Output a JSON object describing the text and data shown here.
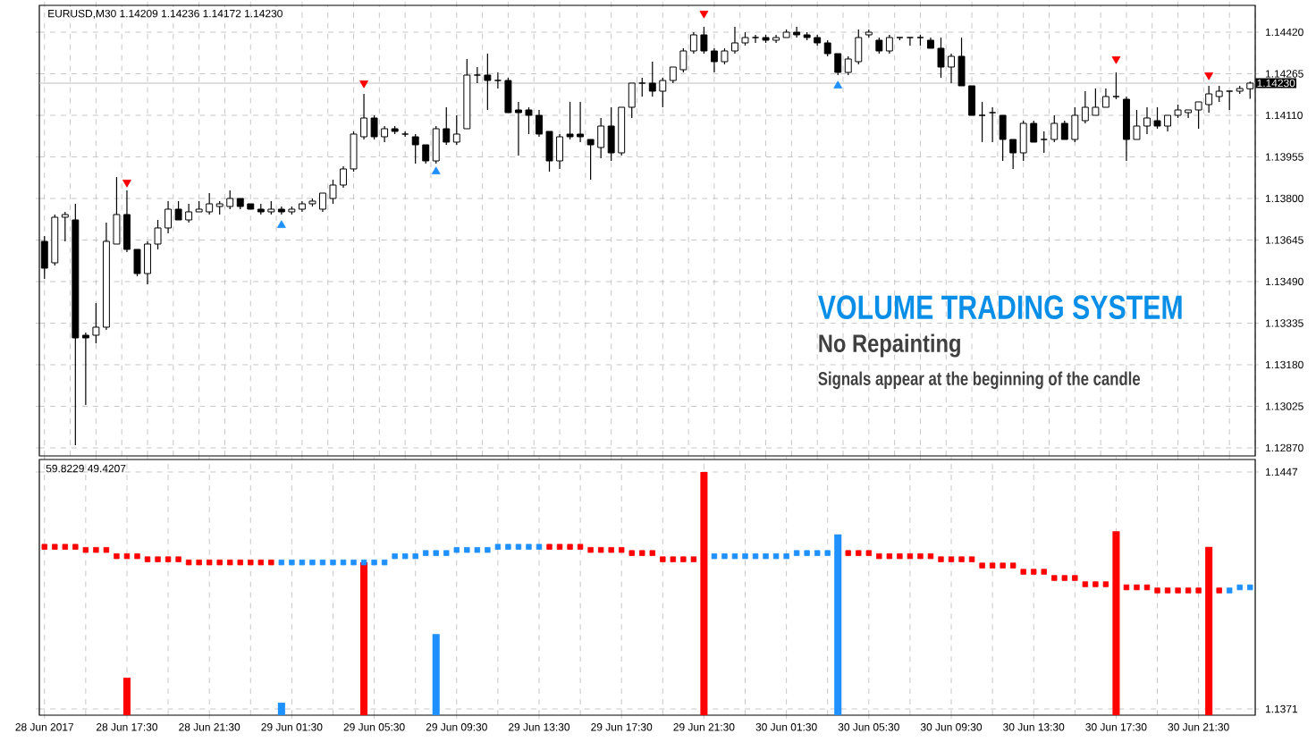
{
  "chart_data": [
    {
      "type": "candlestick",
      "title": "EURUSD,M30  1.14209 1.14236 1.14172 1.14230",
      "color": "#000000",
      "grid": true,
      "tick_labels": "y",
      "categories": [
        null,
        null,
        null,
        null,
        null,
        null,
        null,
        null,
        null,
        null,
        null,
        null,
        null,
        null,
        null,
        null,
        null,
        null,
        null,
        null,
        null,
        null,
        null,
        null,
        null,
        null,
        null,
        null,
        null,
        null,
        null,
        null,
        null,
        null,
        null,
        null,
        null,
        null,
        null,
        null,
        null,
        null,
        null,
        null,
        null,
        null,
        null,
        null,
        null,
        null,
        null,
        null,
        null,
        null,
        null,
        null,
        null,
        null,
        null,
        null,
        null,
        null,
        null,
        null,
        null,
        null,
        null,
        null,
        null,
        null,
        null,
        null,
        null,
        null,
        null,
        null,
        null,
        null,
        null,
        null,
        null,
        null,
        null,
        null,
        null,
        null,
        null,
        null,
        null,
        null,
        null,
        null,
        null,
        null,
        null,
        null,
        null,
        null,
        null,
        null,
        null,
        null,
        null,
        null,
        null,
        null,
        null,
        null,
        null,
        null,
        null,
        null,
        null,
        null,
        null,
        null,
        null,
        null
      ],
      "ylim": [
        1.1284,
        1.1452
      ],
      "yticks": [
        {
          "value": 1.1442,
          "label": "1.14420"
        },
        {
          "value": 1.14265,
          "label": "1.14265"
        },
        {
          "value": 1.1411,
          "label": "1.14110"
        },
        {
          "value": 1.13955,
          "label": "1.13955"
        },
        {
          "value": 1.138,
          "label": "1.13800"
        },
        {
          "value": 1.13645,
          "label": "1.13645"
        },
        {
          "value": 1.1349,
          "label": "1.13490"
        },
        {
          "value": 1.13335,
          "label": "1.13335"
        },
        {
          "value": 1.1318,
          "label": "1.13180"
        },
        {
          "value": 1.13025,
          "label": "1.13025"
        },
        {
          "value": 1.1287,
          "label": "1.12870"
        }
      ],
      "ref_lines": [
        {
          "axis": "y",
          "value": 1.1423,
          "label": "1.14230",
          "color": "#c0c0c0"
        }
      ],
      "annotations": [
        "VOLUME TRADING SYSTEM",
        "No Repainting",
        "Signals appear at the beginning of the candle"
      ],
      "ohlc": [
        [
          1.1364,
          1.1366,
          1.135,
          1.1354
        ],
        [
          1.1356,
          1.1374,
          1.1355,
          1.1373
        ],
        [
          1.1373,
          1.1375,
          1.1364,
          1.1374
        ],
        [
          1.1372,
          1.1378,
          1.1288,
          1.1328
        ],
        [
          1.1329,
          1.133,
          1.1303,
          1.1328
        ],
        [
          1.1329,
          1.1341,
          1.1326,
          1.1332
        ],
        [
          1.1332,
          1.1371,
          1.1331,
          1.1364
        ],
        [
          1.1363,
          1.1388,
          1.1363,
          1.1374
        ],
        [
          1.1374,
          1.1383,
          1.136,
          1.1361
        ],
        [
          1.1361,
          1.1361,
          1.1351,
          1.1352
        ],
        [
          1.1352,
          1.1364,
          1.1348,
          1.1363
        ],
        [
          1.1363,
          1.1372,
          1.1361,
          1.1369
        ],
        [
          1.1369,
          1.1379,
          1.1367,
          1.1376
        ],
        [
          1.1376,
          1.1379,
          1.1372,
          1.1372
        ],
        [
          1.1372,
          1.1378,
          1.1371,
          1.1375
        ],
        [
          1.1375,
          1.1379,
          1.1375,
          1.1376
        ],
        [
          1.1375,
          1.1382,
          1.1374,
          1.1378
        ],
        [
          1.1377,
          1.1379,
          1.1374,
          1.1378
        ],
        [
          1.1377,
          1.1383,
          1.1376,
          1.138
        ],
        [
          1.138,
          1.138,
          1.1376,
          1.1377
        ],
        [
          1.1378,
          1.1378,
          1.1376,
          1.1376
        ],
        [
          1.1376,
          1.1378,
          1.1374,
          1.1375
        ],
        [
          1.1375,
          1.1379,
          1.1374,
          1.1376
        ],
        [
          1.1376,
          1.1377,
          1.1374,
          1.1375
        ],
        [
          1.1375,
          1.1377,
          1.1374,
          1.1376
        ],
        [
          1.1376,
          1.1379,
          1.1375,
          1.1378
        ],
        [
          1.1378,
          1.138,
          1.1377,
          1.1379
        ],
        [
          1.1376,
          1.1382,
          1.1375,
          1.1382
        ],
        [
          1.138,
          1.1387,
          1.1378,
          1.1385
        ],
        [
          1.1385,
          1.1392,
          1.1384,
          1.1391
        ],
        [
          1.1391,
          1.1405,
          1.139,
          1.1404
        ],
        [
          1.1403,
          1.1419,
          1.1402,
          1.141
        ],
        [
          1.141,
          1.1411,
          1.1402,
          1.1403
        ],
        [
          1.1403,
          1.1407,
          1.1401,
          1.1406
        ],
        [
          1.1406,
          1.1407,
          1.1404,
          1.1405
        ],
        [
          1.1404,
          1.1405,
          1.1403,
          1.1404
        ],
        [
          1.1403,
          1.1404,
          1.1393,
          1.14
        ],
        [
          1.14,
          1.14,
          1.1393,
          1.1394
        ],
        [
          1.1394,
          1.1407,
          1.1393,
          1.1406
        ],
        [
          1.1406,
          1.1414,
          1.14,
          1.1401
        ],
        [
          1.1401,
          1.1411,
          1.14,
          1.1404
        ],
        [
          1.1406,
          1.1432,
          1.1406,
          1.1426
        ],
        [
          1.1426,
          1.1429,
          1.1423,
          1.1426
        ],
        [
          1.1426,
          1.1434,
          1.1413,
          1.1424
        ],
        [
          1.1424,
          1.1427,
          1.1421,
          1.1424
        ],
        [
          1.1424,
          1.1425,
          1.1412,
          1.1412
        ],
        [
          1.1413,
          1.1416,
          1.1396,
          1.1412
        ],
        [
          1.1413,
          1.1414,
          1.1404,
          1.1411
        ],
        [
          1.1411,
          1.1413,
          1.1403,
          1.1404
        ],
        [
          1.1405,
          1.1405,
          1.139,
          1.1394
        ],
        [
          1.1394,
          1.1404,
          1.1391,
          1.1403
        ],
        [
          1.1404,
          1.1416,
          1.1402,
          1.1403
        ],
        [
          1.1404,
          1.1416,
          1.1401,
          1.1403
        ],
        [
          1.1402,
          1.1402,
          1.1387,
          1.14
        ],
        [
          1.1399,
          1.141,
          1.1395,
          1.1407
        ],
        [
          1.1407,
          1.1414,
          1.1394,
          1.1397
        ],
        [
          1.1397,
          1.1414,
          1.1396,
          1.1414
        ],
        [
          1.1414,
          1.1423,
          1.141,
          1.1423
        ],
        [
          1.1423,
          1.1425,
          1.1418,
          1.1423
        ],
        [
          1.1423,
          1.1431,
          1.1418,
          1.142
        ],
        [
          1.142,
          1.1425,
          1.1414,
          1.1424
        ],
        [
          1.1424,
          1.1429,
          1.1423,
          1.1429
        ],
        [
          1.1428,
          1.1436,
          1.1427,
          1.1435
        ],
        [
          1.1435,
          1.1442,
          1.1434,
          1.1441
        ],
        [
          1.1441,
          1.1444,
          1.1434,
          1.1435
        ],
        [
          1.1435,
          1.1436,
          1.1427,
          1.1431
        ],
        [
          1.1431,
          1.1436,
          1.143,
          1.1435
        ],
        [
          1.1435,
          1.1444,
          1.1434,
          1.1438
        ],
        [
          1.1438,
          1.1442,
          1.1437,
          1.144
        ],
        [
          1.144,
          1.1441,
          1.1438,
          1.144
        ],
        [
          1.144,
          1.1441,
          1.1438,
          1.1439
        ],
        [
          1.1439,
          1.1441,
          1.1438,
          1.144
        ],
        [
          1.144,
          1.1443,
          1.144,
          1.1442
        ],
        [
          1.1442,
          1.1444,
          1.144,
          1.1441
        ],
        [
          1.1441,
          1.1442,
          1.1439,
          1.144
        ],
        [
          1.144,
          1.1441,
          1.1437,
          1.1438
        ],
        [
          1.1438,
          1.1439,
          1.1433,
          1.1434
        ],
        [
          1.1434,
          1.1434,
          1.1426,
          1.1427
        ],
        [
          1.1427,
          1.1433,
          1.1426,
          1.1432
        ],
        [
          1.1431,
          1.1443,
          1.143,
          1.144
        ],
        [
          1.1441,
          1.1443,
          1.144,
          1.1442
        ],
        [
          1.1439,
          1.144,
          1.1434,
          1.1435
        ],
        [
          1.1435,
          1.1441,
          1.1434,
          1.144
        ],
        [
          1.144,
          1.144,
          1.1439,
          1.144
        ],
        [
          1.144,
          1.144,
          1.1437,
          1.144
        ],
        [
          1.144,
          1.1441,
          1.1437,
          1.144
        ],
        [
          1.1439,
          1.144,
          1.1436,
          1.1436
        ],
        [
          1.1436,
          1.144,
          1.1425,
          1.1429
        ],
        [
          1.1429,
          1.1434,
          1.1423,
          1.1433
        ],
        [
          1.1433,
          1.144,
          1.1422,
          1.1422
        ],
        [
          1.1422,
          1.1422,
          1.1411,
          1.1411
        ],
        [
          1.1411,
          1.1416,
          1.1401,
          1.1411
        ],
        [
          1.1412,
          1.1414,
          1.1401,
          1.1412
        ],
        [
          1.1411,
          1.1411,
          1.1394,
          1.1402
        ],
        [
          1.1402,
          1.1402,
          1.1391,
          1.1397
        ],
        [
          1.1397,
          1.1409,
          1.1394,
          1.1408
        ],
        [
          1.1408,
          1.1409,
          1.1401,
          1.1401
        ],
        [
          1.1402,
          1.1405,
          1.1397,
          1.1402
        ],
        [
          1.1402,
          1.1411,
          1.1401,
          1.1408
        ],
        [
          1.1408,
          1.1409,
          1.1402,
          1.1402
        ],
        [
          1.1402,
          1.1414,
          1.1401,
          1.1411
        ],
        [
          1.1409,
          1.142,
          1.1408,
          1.1414
        ],
        [
          1.1411,
          1.1421,
          1.1411,
          1.1414
        ],
        [
          1.1414,
          1.1421,
          1.1414,
          1.1418
        ],
        [
          1.1418,
          1.1427,
          1.1417,
          1.1418
        ],
        [
          1.1417,
          1.1418,
          1.1394,
          1.1402
        ],
        [
          1.1402,
          1.1413,
          1.1402,
          1.1407
        ],
        [
          1.1407,
          1.1414,
          1.1404,
          1.141
        ],
        [
          1.1409,
          1.1414,
          1.1406,
          1.1407
        ],
        [
          1.1407,
          1.1411,
          1.1405,
          1.1411
        ],
        [
          1.1411,
          1.1415,
          1.141,
          1.1413
        ],
        [
          1.1412,
          1.1413,
          1.141,
          1.1413
        ],
        [
          1.1413,
          1.1416,
          1.1406,
          1.1416
        ],
        [
          1.1415,
          1.1422,
          1.1412,
          1.1419
        ],
        [
          1.1418,
          1.1422,
          1.1416,
          1.142
        ],
        [
          1.142,
          1.142,
          1.1413,
          1.142
        ],
        [
          1.142,
          1.1422,
          1.1419,
          1.1421
        ],
        [
          1.14209,
          1.14236,
          1.14172,
          1.1423
        ]
      ],
      "series": [
        {
          "type": "scatter",
          "marker": "triangle",
          "color": "#ff0000",
          "values": [
            null,
            null,
            null,
            null,
            null,
            null,
            null,
            null,
            1.1386,
            null,
            null,
            null,
            null,
            null,
            null,
            null,
            null,
            null,
            null,
            null,
            null,
            null,
            null,
            null,
            null,
            null,
            null,
            null,
            null,
            null,
            null,
            1.1423,
            null,
            null,
            null,
            null,
            null,
            null,
            null,
            null,
            null,
            null,
            null,
            null,
            null,
            null,
            null,
            null,
            null,
            null,
            null,
            null,
            null,
            null,
            null,
            null,
            null,
            null,
            null,
            null,
            null,
            null,
            null,
            null,
            1.1449,
            null,
            null,
            null,
            null,
            null,
            null,
            null,
            null,
            null,
            null,
            null,
            null,
            null,
            null,
            null,
            null,
            null,
            null,
            null,
            null,
            null,
            null,
            null,
            null,
            null,
            null,
            null,
            null,
            null,
            null,
            null,
            null,
            null,
            null,
            null,
            null,
            null,
            null,
            null,
            1.1432,
            null,
            null,
            null,
            null,
            null,
            null,
            null,
            null,
            1.1426,
            null,
            null,
            null,
            null
          ]
        },
        {
          "type": "scatter",
          "marker": "triangle",
          "color": "#1e90ff",
          "values": [
            null,
            null,
            null,
            null,
            null,
            null,
            null,
            null,
            null,
            null,
            null,
            null,
            null,
            null,
            null,
            null,
            null,
            null,
            null,
            null,
            null,
            null,
            null,
            1.137,
            null,
            null,
            null,
            null,
            null,
            null,
            null,
            null,
            null,
            null,
            null,
            null,
            null,
            null,
            1.139,
            null,
            null,
            null,
            null,
            null,
            null,
            null,
            null,
            null,
            null,
            null,
            null,
            null,
            null,
            null,
            null,
            null,
            null,
            null,
            null,
            null,
            null,
            null,
            null,
            null,
            null,
            null,
            null,
            null,
            null,
            null,
            null,
            null,
            null,
            null,
            null,
            null,
            null,
            1.1422,
            null,
            null,
            null,
            null,
            null,
            null,
            null,
            null,
            null,
            null,
            null,
            null,
            null,
            null,
            null,
            null,
            null,
            null,
            null,
            null,
            null,
            null,
            null,
            null,
            null,
            null,
            null,
            null,
            null,
            null,
            null,
            null,
            null,
            null,
            null,
            null,
            null,
            null,
            null,
            null
          ]
        }
      ]
    },
    {
      "type": "bar",
      "grid": true,
      "categories": [
        "28 Jun 2017",
        null,
        null,
        null,
        null,
        null,
        null,
        null,
        "28 Jun 17:30",
        null,
        null,
        null,
        null,
        null,
        null,
        null,
        "28 Jun 21:30",
        null,
        null,
        null,
        null,
        null,
        null,
        null,
        "29 Jun 01:30",
        null,
        null,
        null,
        null,
        null,
        null,
        null,
        "29 Jun 05:30",
        null,
        null,
        null,
        null,
        null,
        null,
        null,
        "29 Jun 09:30",
        null,
        null,
        null,
        null,
        null,
        null,
        null,
        "29 Jun 13:30",
        null,
        null,
        null,
        null,
        null,
        null,
        null,
        "29 Jun 17:30",
        null,
        null,
        null,
        null,
        null,
        null,
        null,
        "29 Jun 21:30",
        null,
        null,
        null,
        null,
        null,
        null,
        null,
        "30 Jun 01:30",
        null,
        null,
        null,
        null,
        null,
        null,
        null,
        "30 Jun 05:30",
        null,
        null,
        null,
        null,
        null,
        null,
        null,
        "30 Jun 09:30",
        null,
        null,
        null,
        null,
        null,
        null,
        null,
        "30 Jun 13:30",
        null,
        null,
        null,
        null,
        null,
        null,
        null,
        "30 Jun 17:30",
        null,
        null,
        null,
        null,
        null,
        null,
        null,
        "30 Jun 21:30",
        null,
        null,
        null,
        null,
        null
      ],
      "ylim": [
        1.1369,
        1.1451
      ],
      "yticks": [
        1.1447,
        1.1371
      ],
      "annotations": [
        "59.8229 49.4207"
      ],
      "series": [
        {
          "color": "#ff0000",
          "values": [
            null,
            null,
            null,
            null,
            null,
            null,
            null,
            null,
            1.1381,
            null,
            null,
            null,
            null,
            null,
            null,
            null,
            null,
            null,
            null,
            null,
            null,
            null,
            null,
            null,
            null,
            null,
            null,
            null,
            null,
            null,
            null,
            1.1418,
            null,
            null,
            null,
            null,
            null,
            null,
            null,
            null,
            null,
            null,
            null,
            null,
            null,
            null,
            null,
            null,
            null,
            null,
            null,
            null,
            null,
            null,
            null,
            null,
            null,
            null,
            null,
            null,
            null,
            null,
            null,
            null,
            1.1447,
            null,
            null,
            null,
            null,
            null,
            null,
            null,
            null,
            null,
            null,
            null,
            null,
            null,
            null,
            null,
            null,
            null,
            null,
            null,
            null,
            null,
            null,
            null,
            null,
            null,
            null,
            null,
            null,
            null,
            null,
            null,
            null,
            null,
            null,
            null,
            null,
            null,
            null,
            null,
            1.1428,
            null,
            null,
            null,
            null,
            null,
            null,
            null,
            null,
            1.1423,
            null,
            null,
            null,
            null
          ]
        },
        {
          "color": "#1e90ff",
          "values": [
            null,
            null,
            null,
            null,
            null,
            null,
            null,
            null,
            null,
            null,
            null,
            null,
            null,
            null,
            null,
            null,
            null,
            null,
            null,
            null,
            null,
            null,
            null,
            1.1373,
            null,
            null,
            null,
            null,
            null,
            null,
            null,
            null,
            null,
            null,
            null,
            null,
            null,
            null,
            1.1395,
            null,
            null,
            null,
            null,
            null,
            null,
            null,
            null,
            null,
            null,
            null,
            null,
            null,
            null,
            null,
            null,
            null,
            null,
            null,
            null,
            null,
            null,
            null,
            null,
            null,
            null,
            null,
            null,
            null,
            null,
            null,
            null,
            null,
            null,
            null,
            null,
            null,
            null,
            1.1427,
            null,
            null,
            null,
            null,
            null,
            null,
            null,
            null,
            null,
            null,
            null,
            null,
            null,
            null,
            null,
            null,
            null,
            null,
            null,
            null,
            null,
            null,
            null,
            null,
            null,
            null,
            null,
            null,
            null,
            null,
            null,
            null,
            null,
            null,
            null,
            null,
            null,
            null,
            null,
            null
          ]
        },
        {
          "type": "scatter",
          "marker": "square",
          "color": "#ff0000",
          "values": [
            1.1423,
            1.1423,
            1.1423,
            1.1423,
            1.1422,
            1.1422,
            1.1422,
            1.142,
            1.142,
            1.142,
            1.1419,
            1.1419,
            1.1419,
            1.1419,
            1.1418,
            1.1418,
            1.1418,
            1.1418,
            1.1418,
            1.1418,
            1.1418,
            1.1418,
            1.1418,
            null,
            null,
            null,
            null,
            null,
            null,
            null,
            null,
            null,
            null,
            null,
            null,
            null,
            null,
            null,
            null,
            null,
            null,
            null,
            null,
            null,
            null,
            null,
            null,
            null,
            null,
            1.1423,
            1.1423,
            1.1423,
            1.1423,
            1.1422,
            1.1422,
            1.1422,
            1.1422,
            1.1421,
            1.1421,
            1.1421,
            1.1419,
            1.1419,
            1.1419,
            1.1419,
            null,
            null,
            null,
            null,
            null,
            null,
            null,
            null,
            null,
            null,
            null,
            null,
            null,
            null,
            1.1421,
            1.1421,
            1.1421,
            1.142,
            1.142,
            1.142,
            1.142,
            1.142,
            1.142,
            1.1419,
            1.1419,
            1.1419,
            1.1419,
            1.1417,
            1.1417,
            1.1417,
            1.1417,
            1.1415,
            1.1415,
            1.1415,
            1.1413,
            1.1413,
            1.1413,
            1.1411,
            1.1411,
            1.1411,
            null,
            1.141,
            1.141,
            1.141,
            1.1409,
            1.1409,
            1.1409,
            1.1409,
            1.1409,
            null,
            1.1409,
            null,
            null,
            null
          ]
        },
        {
          "type": "scatter",
          "marker": "square",
          "color": "#1e90ff",
          "values": [
            null,
            null,
            null,
            null,
            null,
            null,
            null,
            null,
            null,
            null,
            null,
            null,
            null,
            null,
            null,
            null,
            null,
            null,
            null,
            null,
            null,
            null,
            null,
            1.1418,
            1.1418,
            1.1418,
            1.1418,
            1.1418,
            1.1418,
            1.1418,
            1.1418,
            1.1418,
            1.1418,
            1.1418,
            1.142,
            1.142,
            1.142,
            1.1421,
            1.1421,
            1.1421,
            1.1422,
            1.1422,
            1.1422,
            1.1422,
            1.1423,
            1.1423,
            1.1423,
            1.1423,
            1.1423,
            null,
            null,
            null,
            null,
            null,
            null,
            null,
            null,
            null,
            null,
            null,
            null,
            null,
            null,
            null,
            null,
            1.142,
            1.142,
            1.142,
            1.142,
            1.142,
            1.142,
            1.142,
            1.142,
            1.1421,
            1.1421,
            1.1421,
            1.1421,
            null,
            null,
            null,
            null,
            null,
            null,
            null,
            null,
            null,
            null,
            null,
            null,
            null,
            null,
            null,
            null,
            null,
            null,
            null,
            null,
            null,
            null,
            null,
            null,
            null,
            null,
            null,
            null,
            null,
            null,
            null,
            null,
            null,
            null,
            null,
            null,
            null,
            null,
            1.1409,
            1.141,
            1.141
          ]
        }
      ]
    }
  ]
}
